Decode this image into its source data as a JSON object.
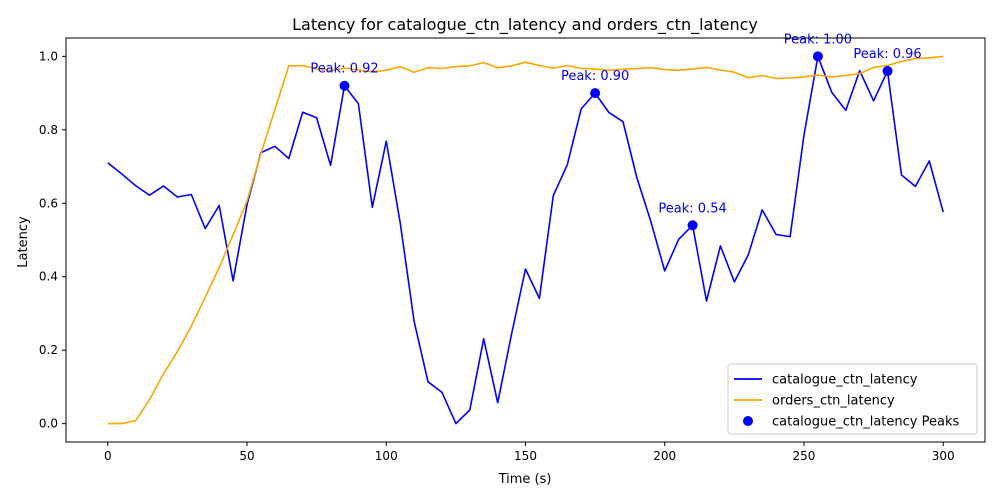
{
  "chart_data": {
    "type": "line",
    "title": "Latency for catalogue_ctn_latency and orders_ctn_latency",
    "xlabel": "Time (s)",
    "ylabel": "Latency",
    "xlim": [
      -15,
      315
    ],
    "ylim": [
      -0.05,
      1.05
    ],
    "x_ticks": [
      0,
      50,
      100,
      150,
      200,
      250,
      300
    ],
    "y_ticks": [
      0.0,
      0.2,
      0.4,
      0.6,
      0.8,
      1.0
    ],
    "x_tick_labels": [
      "0",
      "50",
      "100",
      "150",
      "200",
      "250",
      "300"
    ],
    "y_tick_labels": [
      "0.0",
      "0.2",
      "0.4",
      "0.6",
      "0.8",
      "1.0"
    ],
    "grid": false,
    "legend_position": "bottom-right",
    "x": [
      0,
      5,
      10,
      15,
      20,
      25,
      30,
      35,
      40,
      45,
      50,
      55,
      60,
      65,
      70,
      75,
      80,
      85,
      90,
      95,
      100,
      105,
      110,
      115,
      120,
      125,
      130,
      135,
      140,
      145,
      150,
      155,
      160,
      165,
      170,
      175,
      180,
      185,
      190,
      195,
      200,
      205,
      210,
      215,
      220,
      225,
      230,
      235,
      240,
      245,
      250,
      255,
      260,
      265,
      270,
      275,
      280,
      285,
      290,
      295,
      300
    ],
    "series": [
      {
        "name": "catalogue_ctn_latency",
        "color": "#0000ff",
        "values": [
          0.71,
          0.68,
          0.648,
          0.622,
          0.647,
          0.617,
          0.624,
          0.531,
          0.594,
          0.389,
          0.596,
          0.738,
          0.755,
          0.722,
          0.848,
          0.833,
          0.703,
          0.92,
          0.871,
          0.589,
          0.769,
          0.547,
          0.279,
          0.114,
          0.085,
          0.0,
          0.037,
          0.231,
          0.057,
          0.244,
          0.421,
          0.341,
          0.621,
          0.705,
          0.857,
          0.9,
          0.847,
          0.822,
          0.669,
          0.551,
          0.416,
          0.502,
          0.54,
          0.334,
          0.484,
          0.386,
          0.46,
          0.582,
          0.515,
          0.509,
          0.786,
          1.0,
          0.902,
          0.853,
          0.961,
          0.879,
          0.96,
          0.677,
          0.646,
          0.715,
          0.576
        ]
      },
      {
        "name": "orders_ctn_latency",
        "color": "#ffa500",
        "values": [
          0.0,
          0.0,
          0.008,
          0.065,
          0.136,
          0.196,
          0.265,
          0.344,
          0.425,
          0.514,
          0.606,
          0.735,
          0.855,
          0.974,
          0.975,
          0.966,
          0.961,
          0.968,
          0.963,
          0.958,
          0.962,
          0.972,
          0.957,
          0.969,
          0.967,
          0.972,
          0.974,
          0.983,
          0.969,
          0.974,
          0.984,
          0.975,
          0.968,
          0.975,
          0.967,
          0.966,
          0.962,
          0.965,
          0.967,
          0.969,
          0.964,
          0.962,
          0.966,
          0.97,
          0.963,
          0.957,
          0.942,
          0.948,
          0.94,
          0.941,
          0.944,
          0.949,
          0.944,
          0.948,
          0.953,
          0.97,
          0.975,
          0.986,
          0.994,
          0.996,
          1.0
        ]
      }
    ],
    "peaks": {
      "name": "catalogue_ctn_latency Peaks",
      "color": "#0000ff",
      "points": [
        {
          "x": 85,
          "y": 0.92,
          "label": "Peak: 0.92"
        },
        {
          "x": 175,
          "y": 0.9,
          "label": "Peak: 0.90"
        },
        {
          "x": 210,
          "y": 0.54,
          "label": "Peak: 0.54"
        },
        {
          "x": 255,
          "y": 1.0,
          "label": "Peak: 1.00"
        },
        {
          "x": 280,
          "y": 0.96,
          "label": "Peak: 0.96"
        }
      ]
    }
  }
}
